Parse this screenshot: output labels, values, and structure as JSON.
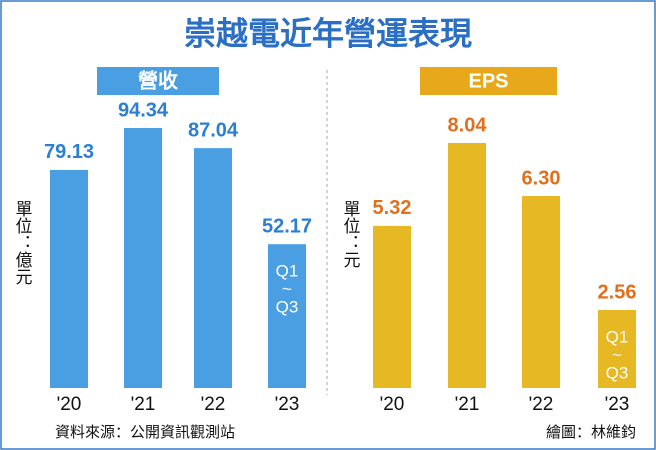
{
  "title": "崇越電近年營運表現",
  "source": "資料來源：公開資訊觀測站",
  "credit": "繪圖：林維鈞",
  "chart_data": [
    {
      "type": "bar",
      "title": "營收",
      "unit": "單位：億元",
      "categories": [
        "'20",
        "'21",
        "'22",
        "'23"
      ],
      "values": [
        79.13,
        94.34,
        87.04,
        52.17
      ],
      "color": "#4a9ee2",
      "label_color": "#2a7fd4",
      "header_color": "#4a9ee2",
      "annotation": [
        "Q1",
        "~",
        "Q3"
      ]
    },
    {
      "type": "bar",
      "title": "EPS",
      "unit": "單位：元",
      "categories": [
        "'20",
        "'21",
        "'22",
        "'23"
      ],
      "values": [
        5.32,
        8.04,
        6.3,
        2.56
      ],
      "value_labels": [
        "5.32",
        "8.04",
        "6.30",
        "2.56"
      ],
      "color": "#e6b824",
      "label_color": "#e0701c",
      "header_color": "#e8a81c",
      "annotation": [
        "Q1",
        "~",
        "Q3"
      ]
    }
  ]
}
